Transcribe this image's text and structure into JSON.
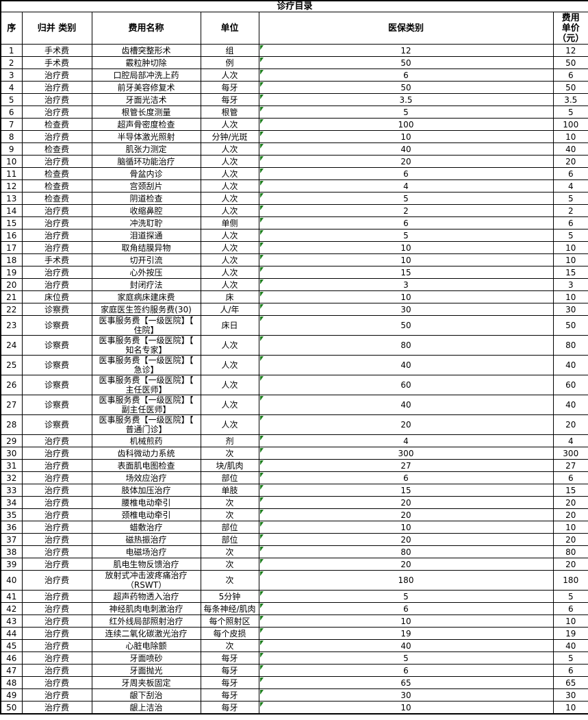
{
  "title": "诊疗目录",
  "colors": {
    "background": "#ffffff",
    "border": "#000000",
    "text": "#000000",
    "corner_marker_green": "#1e7d1e"
  },
  "table": {
    "columns": [
      "序",
      "归并 类别",
      "费用名称",
      "单位",
      "医保类别",
      "费用\n单价\n（元）"
    ],
    "rows": [
      [
        "1",
        "手术费",
        "齿槽突整形术",
        "组",
        "12",
        "12"
      ],
      [
        "2",
        "手术费",
        "霰粒肿切除",
        "例",
        "50",
        "50"
      ],
      [
        "3",
        "治疗费",
        "口腔局部冲洗上药",
        "人次",
        "6",
        "6"
      ],
      [
        "4",
        "治疗费",
        "前牙美容修复术",
        "每牙",
        "50",
        "50"
      ],
      [
        "5",
        "治疗费",
        "牙面光洁术",
        "每牙",
        "3.5",
        "3.5"
      ],
      [
        "6",
        "治疗费",
        "根管长度测量",
        "根管",
        "5",
        "5"
      ],
      [
        "7",
        "检查费",
        "超声骨密度检查",
        "人次",
        "100",
        "100"
      ],
      [
        "8",
        "治疗费",
        "半导体激光照射",
        "分钟/光斑",
        "10",
        "10"
      ],
      [
        "9",
        "检查费",
        "肌张力测定",
        "人次",
        "40",
        "40"
      ],
      [
        "10",
        "治疗费",
        "脑循环功能治疗",
        "人次",
        "20",
        "20"
      ],
      [
        "11",
        "检查费",
        "骨盆内诊",
        "人次",
        "6",
        "6"
      ],
      [
        "12",
        "检查费",
        "宫颈刮片",
        "人次",
        "4",
        "4"
      ],
      [
        "13",
        "检查费",
        "阴道检查",
        "人次",
        "5",
        "5"
      ],
      [
        "14",
        "治疗费",
        "收缩鼻腔",
        "人次",
        "2",
        "2"
      ],
      [
        "15",
        "治疗费",
        "冲洗耵聍",
        "单侧",
        "6",
        "6"
      ],
      [
        "16",
        "治疗费",
        "泪道探通",
        "人次",
        "5",
        "5"
      ],
      [
        "17",
        "治疗费",
        "取角结膜异物",
        "人次",
        "10",
        "10"
      ],
      [
        "18",
        "手术费",
        "切开引流",
        "人次",
        "10",
        "10"
      ],
      [
        "19",
        "治疗费",
        "心外按压",
        "人次",
        "15",
        "15"
      ],
      [
        "20",
        "治疗费",
        "封闭疗法",
        "人次",
        "3",
        "3"
      ],
      [
        "21",
        "床位费",
        "家庭病床建床费",
        "床",
        "10",
        "10"
      ],
      [
        "22",
        "诊察费",
        "家庭医生签约服务费(30)",
        "人/年",
        "30",
        "30"
      ],
      [
        "23",
        "诊察费",
        "医事服务费【一级医院】【\n住院】",
        "床日",
        "50",
        "50"
      ],
      [
        "24",
        "诊察费",
        "医事服务费【一级医院】【\n知名专家】",
        "人次",
        "80",
        "80"
      ],
      [
        "25",
        "诊察费",
        "医事服务费【一级医院】【\n急诊】",
        "人次",
        "40",
        "40"
      ],
      [
        "26",
        "诊察费",
        "医事服务费【一级医院】【\n主任医师】",
        "人次",
        "60",
        "60"
      ],
      [
        "27",
        "诊察费",
        "医事服务费【一级医院】【\n副主任医师】",
        "人次",
        "40",
        "40"
      ],
      [
        "28",
        "诊察费",
        "医事服务费【一级医院】【\n普通门诊】",
        "人次",
        "20",
        "20"
      ],
      [
        "29",
        "治疗费",
        "机械煎药",
        "剂",
        "4",
        "4"
      ],
      [
        "30",
        "治疗费",
        "齿科微动力系统",
        "次",
        "300",
        "300"
      ],
      [
        "31",
        "治疗费",
        "表面肌电图检查",
        "块/肌肉",
        "27",
        "27"
      ],
      [
        "32",
        "治疗费",
        "场效应治疗",
        "部位",
        "6",
        "6"
      ],
      [
        "33",
        "治疗费",
        "肢体加压治疗",
        "单肢",
        "15",
        "15"
      ],
      [
        "34",
        "治疗费",
        "腰椎电动牵引",
        "次",
        "20",
        "20"
      ],
      [
        "35",
        "治疗费",
        "颈椎电动牵引",
        "次",
        "20",
        "20"
      ],
      [
        "36",
        "治疗费",
        "蜡敷治疗",
        "部位",
        "10",
        "10"
      ],
      [
        "37",
        "治疗费",
        "磁热振治疗",
        "部位",
        "20",
        "20"
      ],
      [
        "38",
        "治疗费",
        "电磁场治疗",
        "次",
        "80",
        "80"
      ],
      [
        "39",
        "治疗费",
        "肌电生物反馈治疗",
        "次",
        "20",
        "20"
      ],
      [
        "40",
        "治疗费",
        "放射式冲击波疼痛治疗\n（RSWT）",
        "次",
        "180",
        "180"
      ],
      [
        "41",
        "治疗费",
        "超声药物透入治疗",
        "5分钟",
        "5",
        "5"
      ],
      [
        "42",
        "治疗费",
        "神经肌肉电刺激治疗",
        "每条神经/肌肉",
        "6",
        "6"
      ],
      [
        "43",
        "治疗费",
        "红外线局部照射治疗",
        "每个照射区",
        "10",
        "10"
      ],
      [
        "44",
        "治疗费",
        "连续二氧化碳激光治疗",
        "每个皮损",
        "19",
        "19"
      ],
      [
        "45",
        "治疗费",
        "心脏电除颤",
        "次",
        "40",
        "40"
      ],
      [
        "46",
        "治疗费",
        "牙面喷砂",
        "每牙",
        "5",
        "5"
      ],
      [
        "47",
        "治疗费",
        "牙面抛光",
        "每牙",
        "6",
        "6"
      ],
      [
        "48",
        "治疗费",
        "牙周夹板固定",
        "每牙",
        "65",
        "65"
      ],
      [
        "49",
        "治疗费",
        "龈下刮治",
        "每牙",
        "30",
        "30"
      ],
      [
        "50",
        "治疗费",
        "龈上洁治",
        "每牙",
        "10",
        "10"
      ]
    ]
  }
}
